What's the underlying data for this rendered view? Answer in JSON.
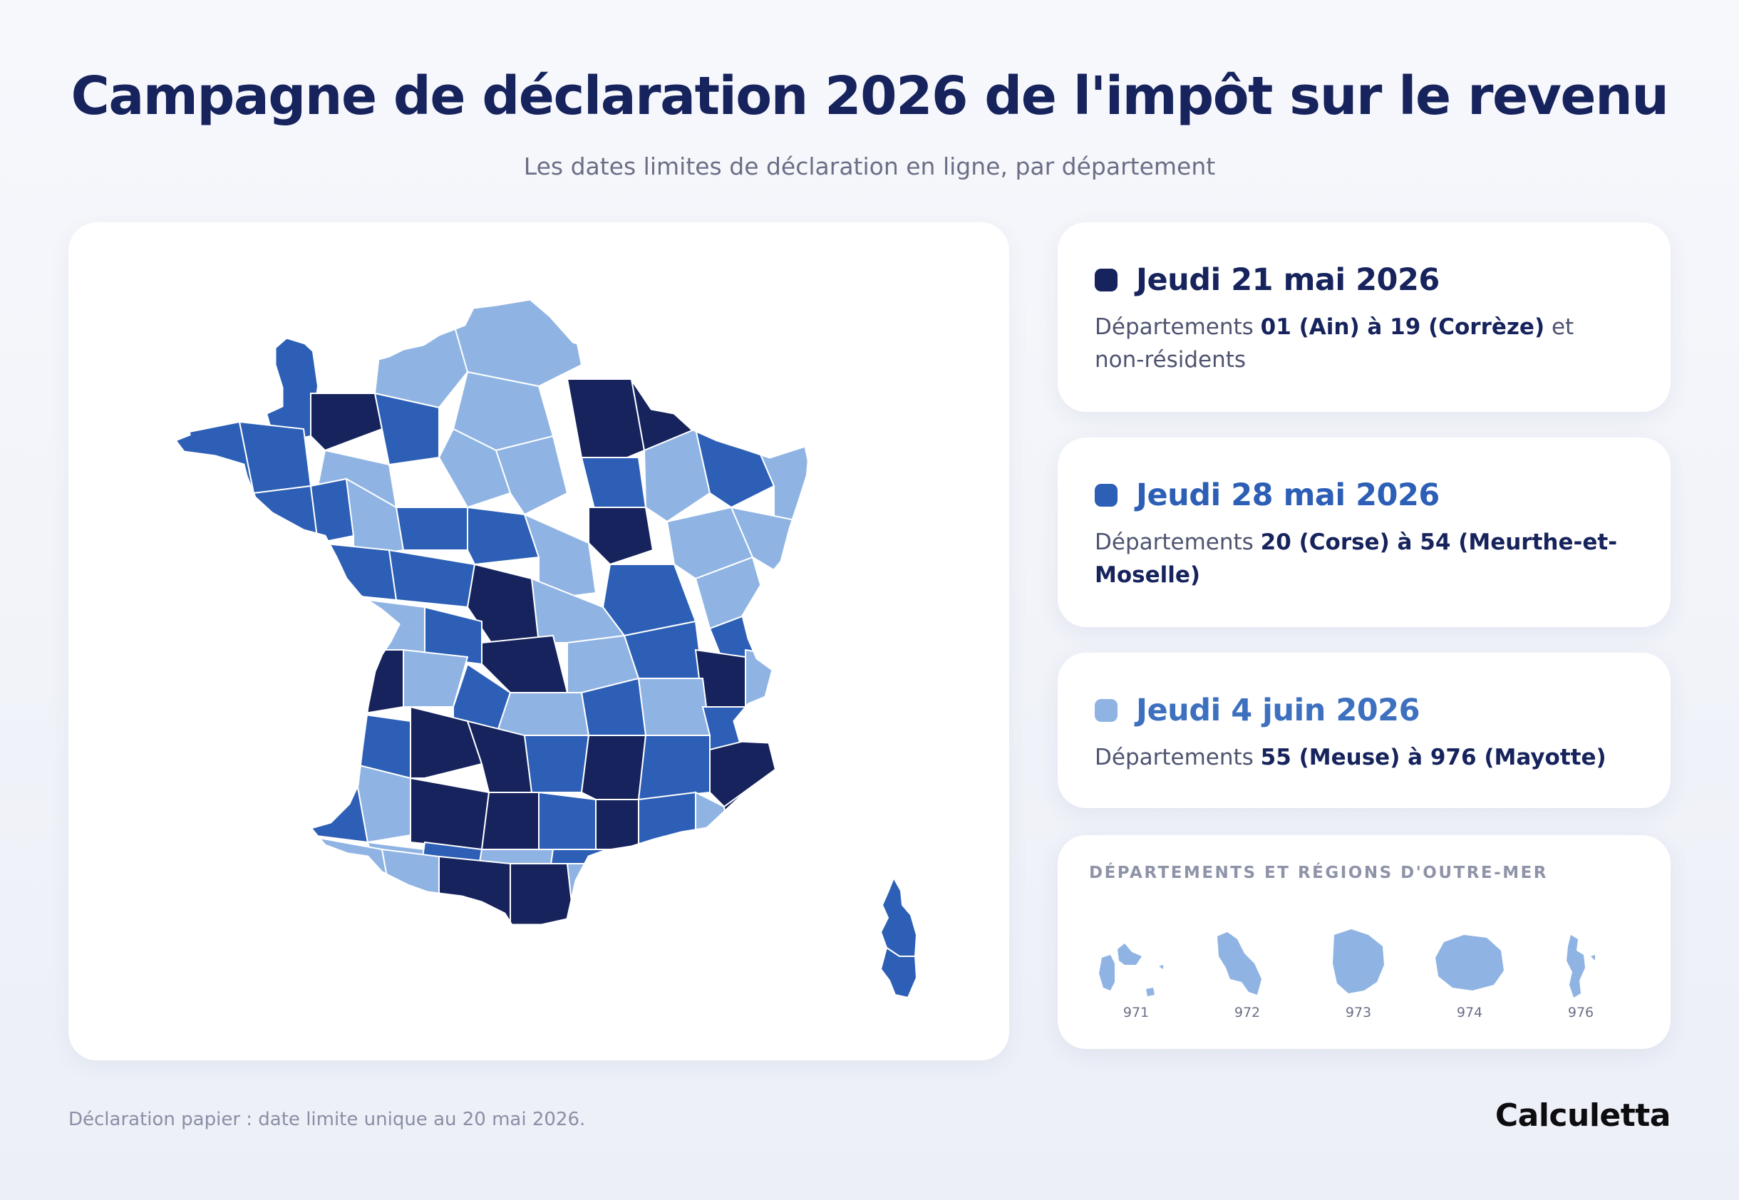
{
  "header": {
    "title": "Campagne de déclaration 2026 de l'impôt sur le revenu",
    "subtitle": "Les dates limites de déclaration en ligne, par département"
  },
  "colors": {
    "dark": "#16235c",
    "medium": "#2c5fb5",
    "light": "#8fb4e3",
    "border": "#ffffff"
  },
  "legend": [
    {
      "id": "dark",
      "date": "Jeudi 21 mai 2026",
      "color": "#16235c",
      "prefix": "Départements ",
      "range": "01 (Ain) à 19 (Corrèze)",
      "suffix": " et non-résidents"
    },
    {
      "id": "medium",
      "date": "Jeudi 28 mai 2026",
      "color": "#2c5fb5",
      "prefix": "Départements ",
      "range": "20 (Corse) à 54 (Meurthe-et-Moselle)",
      "suffix": ""
    },
    {
      "id": "light",
      "date": "Jeudi 4 juin 2026",
      "color": "#8fb4e3",
      "prefix": "Départements ",
      "range": "55 (Meuse) à 976 (Mayotte)",
      "suffix": ""
    }
  ],
  "overseas": {
    "title": "DÉPARTEMENTS ET RÉGIONS D'OUTRE-MER",
    "items": [
      {
        "code": "971",
        "shape": "guadeloupe",
        "group": "light"
      },
      {
        "code": "972",
        "shape": "martinique",
        "group": "light"
      },
      {
        "code": "973",
        "shape": "guyane",
        "group": "light"
      },
      {
        "code": "974",
        "shape": "reunion",
        "group": "light"
      },
      {
        "code": "976",
        "shape": "mayotte",
        "group": "light"
      }
    ]
  },
  "footnote": "Déclaration papier : date limite unique au 20 mai 2026.",
  "brand": "Calculetta"
}
